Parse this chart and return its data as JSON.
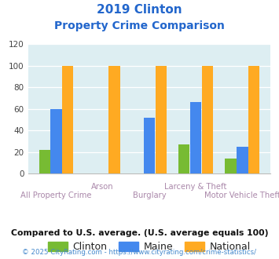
{
  "title_line1": "2019 Clinton",
  "title_line2": "Property Crime Comparison",
  "categories": [
    "All Property Crime",
    "Arson",
    "Burglary",
    "Larceny & Theft",
    "Motor Vehicle Theft"
  ],
  "clinton": [
    22,
    0,
    0,
    27,
    14
  ],
  "maine": [
    60,
    0,
    52,
    66,
    25
  ],
  "national": [
    100,
    100,
    100,
    100,
    100
  ],
  "clinton_color": "#77bb33",
  "maine_color": "#4488ee",
  "national_color": "#ffaa22",
  "bg_color": "#ddeef2",
  "ylim": [
    0,
    120
  ],
  "yticks": [
    0,
    20,
    40,
    60,
    80,
    100,
    120
  ],
  "xlabel_color": "#aa88aa",
  "title_color": "#2266cc",
  "footer_note": "Compared to U.S. average. (U.S. average equals 100)",
  "footer_copy": "© 2025 CityRating.com - https://www.cityrating.com/crime-statistics/",
  "legend_labels": [
    "Clinton",
    "Maine",
    "National"
  ],
  "grid_color": "#c8dde0"
}
